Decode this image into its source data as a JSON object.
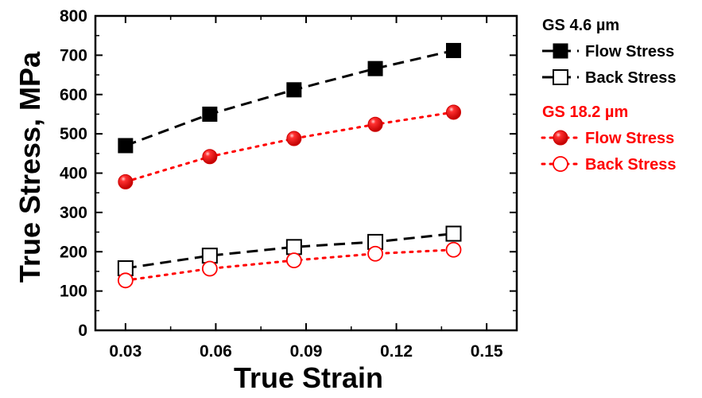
{
  "chart_data": {
    "type": "scatter",
    "xlabel": "True Strain",
    "ylabel": "True Stress, MPa",
    "xlim": [
      0.02,
      0.16
    ],
    "ylim": [
      0,
      800
    ],
    "xticks": [
      "0.03",
      "0.06",
      "0.09",
      "0.12",
      "0.15"
    ],
    "yticks": [
      "0",
      "100",
      "200",
      "300",
      "400",
      "500",
      "600",
      "700",
      "800"
    ],
    "legend_position": "right",
    "groups": [
      {
        "label": "GS 4.6 µm",
        "color": "#000000"
      },
      {
        "label": "GS 18.2 µm",
        "color": "#ff0000"
      }
    ],
    "series": [
      {
        "name": "Flow Stress",
        "group": 0,
        "marker": "filled-square",
        "line": "dash",
        "color": "#000000",
        "x": [
          0.03,
          0.058,
          0.086,
          0.113,
          0.139
        ],
        "y": [
          470,
          550,
          612,
          666,
          712
        ]
      },
      {
        "name": "Back Stress",
        "group": 0,
        "marker": "open-square",
        "line": "dash",
        "color": "#000000",
        "x": [
          0.03,
          0.058,
          0.086,
          0.113,
          0.139
        ],
        "y": [
          158,
          190,
          212,
          225,
          246
        ]
      },
      {
        "name": "Flow Stress",
        "group": 1,
        "marker": "filled-circle",
        "line": "dot",
        "color": "#ff0000",
        "x": [
          0.03,
          0.058,
          0.086,
          0.113,
          0.139
        ],
        "y": [
          378,
          442,
          488,
          524,
          555
        ]
      },
      {
        "name": "Back Stress",
        "group": 1,
        "marker": "open-circle",
        "line": "dot",
        "color": "#ff0000",
        "x": [
          0.03,
          0.058,
          0.086,
          0.113,
          0.139
        ],
        "y": [
          127,
          157,
          178,
          195,
          205
        ]
      }
    ]
  }
}
